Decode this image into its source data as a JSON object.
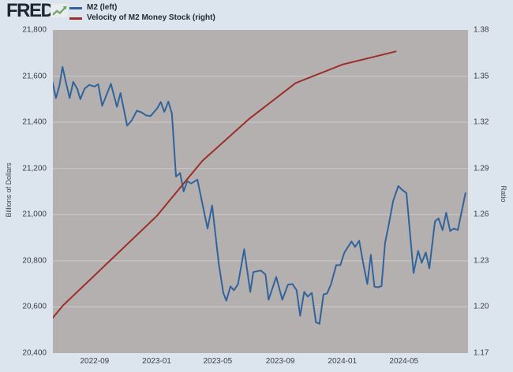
{
  "colors": {
    "page_bg": "#dce4ed",
    "plot_bg": "#b3b0af",
    "grid": "#c9c6c5",
    "m2_line": "#31639c",
    "velocity_line": "#9d2e29",
    "logo_text": "#1c2733",
    "legend_text": "#202b36",
    "tick_text": "#3a3f45",
    "axis_title_text": "#3d4854",
    "logo_icon_green": "#69a74f"
  },
  "header": {
    "logo_text": "FRED.",
    "logo_icon": "fred-sparkline-icon",
    "legend": [
      {
        "label": "M2 (left)",
        "color": "#31639c"
      },
      {
        "label": "Velocity of M2 Money Stock (right)",
        "color": "#9d2e29"
      }
    ]
  },
  "chart_data": {
    "type": "line",
    "title": "",
    "grid": "horizontal-only",
    "legend_position": "top-left",
    "plot_bg": "#b3b0af",
    "grid_color": "#c9c6c5",
    "x_axis": {
      "start": "2022-06-11",
      "end": "2024-09-04",
      "tick_dates": [
        "2022-09-01",
        "2023-01-01",
        "2023-05-01",
        "2023-09-01",
        "2024-01-01",
        "2024-05-01"
      ],
      "tick_labels": [
        "2022-09",
        "2023-01",
        "2023-05",
        "2023-09",
        "2024-01",
        "2024-05"
      ]
    },
    "left_axis": {
      "label": "Billions of Dollars",
      "min": 20400,
      "max": 21800,
      "ticks": [
        {
          "label": "21,800",
          "value": 21800
        },
        {
          "label": "21,600",
          "value": 21600
        },
        {
          "label": "21,400",
          "value": 21400
        },
        {
          "label": "21,200",
          "value": 21200
        },
        {
          "label": "21,000",
          "value": 21000
        },
        {
          "label": "20,800",
          "value": 20800
        },
        {
          "label": "20,600",
          "value": 20600
        },
        {
          "label": "20,400",
          "value": 20400
        }
      ]
    },
    "right_axis": {
      "label": "Ratio",
      "min": 1.17,
      "max": 1.38,
      "ticks": [
        {
          "label": "1.38",
          "value": 1.38
        },
        {
          "label": "1.35",
          "value": 1.35
        },
        {
          "label": "1.32",
          "value": 1.32
        },
        {
          "label": "1.29",
          "value": 1.29
        },
        {
          "label": "1.26",
          "value": 1.26
        },
        {
          "label": "1.23",
          "value": 1.23
        },
        {
          "label": "1.20",
          "value": 1.2
        },
        {
          "label": "1.17",
          "value": 1.17
        }
      ]
    },
    "series": [
      {
        "name": "M2 (left)",
        "axis": "left",
        "color": "#31639c",
        "unit": "Billions of Dollars",
        "frequency": "weekly (values estimated from pixels)",
        "points": [
          [
            "2022-06-10",
            21575
          ],
          [
            "2022-06-17",
            21505
          ],
          [
            "2022-06-24",
            21560
          ],
          [
            "2022-06-30",
            21640
          ],
          [
            "2022-07-08",
            21560
          ],
          [
            "2022-07-14",
            21505
          ],
          [
            "2022-07-21",
            21575
          ],
          [
            "2022-07-29",
            21545
          ],
          [
            "2022-08-04",
            21500
          ],
          [
            "2022-08-12",
            21545
          ],
          [
            "2022-08-21",
            21562
          ],
          [
            "2022-09-01",
            21555
          ],
          [
            "2022-09-08",
            21565
          ],
          [
            "2022-09-16",
            21471
          ],
          [
            "2022-10-03",
            21567
          ],
          [
            "2022-10-15",
            21467
          ],
          [
            "2022-10-22",
            21527
          ],
          [
            "2022-11-04",
            21385
          ],
          [
            "2022-11-13",
            21408
          ],
          [
            "2022-11-23",
            21450
          ],
          [
            "2022-12-02",
            21443
          ],
          [
            "2022-12-11",
            21430
          ],
          [
            "2022-12-20",
            21427
          ],
          [
            "2023-01-02",
            21460
          ],
          [
            "2023-01-09",
            21488
          ],
          [
            "2023-01-16",
            21445
          ],
          [
            "2023-01-24",
            21490
          ],
          [
            "2023-01-31",
            21438
          ],
          [
            "2023-02-08",
            21165
          ],
          [
            "2023-02-16",
            21180
          ],
          [
            "2023-02-23",
            21100
          ],
          [
            "2023-03-02",
            21145
          ],
          [
            "2023-03-10",
            21135
          ],
          [
            "2023-03-22",
            21152
          ],
          [
            "2023-04-03",
            21025
          ],
          [
            "2023-04-11",
            20940
          ],
          [
            "2023-04-20",
            21040
          ],
          [
            "2023-05-03",
            20790
          ],
          [
            "2023-05-12",
            20661
          ],
          [
            "2023-05-18",
            20627
          ],
          [
            "2023-05-26",
            20689
          ],
          [
            "2023-06-02",
            20672
          ],
          [
            "2023-06-10",
            20699
          ],
          [
            "2023-06-22",
            20850
          ],
          [
            "2023-07-04",
            20665
          ],
          [
            "2023-07-10",
            20751
          ],
          [
            "2023-07-25",
            20758
          ],
          [
            "2023-08-03",
            20740
          ],
          [
            "2023-08-09",
            20631
          ],
          [
            "2023-08-24",
            20730
          ],
          [
            "2023-09-05",
            20631
          ],
          [
            "2023-09-16",
            20696
          ],
          [
            "2023-09-25",
            20699
          ],
          [
            "2023-10-03",
            20672
          ],
          [
            "2023-10-10",
            20562
          ],
          [
            "2023-10-18",
            20665
          ],
          [
            "2023-10-25",
            20645
          ],
          [
            "2023-11-02",
            20661
          ],
          [
            "2023-11-10",
            20534
          ],
          [
            "2023-11-17",
            20527
          ],
          [
            "2023-11-25",
            20654
          ],
          [
            "2023-12-02",
            20658
          ],
          [
            "2023-12-10",
            20700
          ],
          [
            "2023-12-20",
            20781
          ],
          [
            "2023-12-28",
            20781
          ],
          [
            "2024-01-05",
            20836
          ],
          [
            "2024-01-19",
            20884
          ],
          [
            "2024-01-26",
            20860
          ],
          [
            "2024-02-03",
            20887
          ],
          [
            "2024-02-11",
            20790
          ],
          [
            "2024-02-19",
            20699
          ],
          [
            "2024-02-26",
            20826
          ],
          [
            "2024-03-04",
            20688
          ],
          [
            "2024-03-11",
            20685
          ],
          [
            "2024-03-18",
            20690
          ],
          [
            "2024-03-25",
            20877
          ],
          [
            "2024-04-01",
            20953
          ],
          [
            "2024-04-10",
            21060
          ],
          [
            "2024-04-20",
            21124
          ],
          [
            "2024-04-26",
            21110
          ],
          [
            "2024-05-06",
            21093
          ],
          [
            "2024-05-20",
            20747
          ],
          [
            "2024-05-29",
            20843
          ],
          [
            "2024-06-05",
            20791
          ],
          [
            "2024-06-13",
            20836
          ],
          [
            "2024-06-20",
            20767
          ],
          [
            "2024-07-01",
            20970
          ],
          [
            "2024-07-08",
            20984
          ],
          [
            "2024-07-16",
            20933
          ],
          [
            "2024-07-23",
            21008
          ],
          [
            "2024-07-31",
            20929
          ],
          [
            "2024-08-07",
            20940
          ],
          [
            "2024-08-15",
            20933
          ],
          [
            "2024-08-30",
            21093
          ]
        ]
      },
      {
        "name": "Velocity of M2 Money Stock (right)",
        "axis": "right",
        "color": "#9d2e29",
        "unit": "Ratio",
        "frequency": "quarterly (values estimated from pixels)",
        "points": [
          [
            "2022-06-11",
            1.193
          ],
          [
            "2022-07-01",
            1.201
          ],
          [
            "2022-10-01",
            1.23
          ],
          [
            "2023-01-01",
            1.259
          ],
          [
            "2023-04-01",
            1.295
          ],
          [
            "2023-07-01",
            1.322
          ],
          [
            "2023-10-01",
            1.3455
          ],
          [
            "2024-01-01",
            1.3575
          ],
          [
            "2024-04-15",
            1.366
          ]
        ]
      }
    ]
  }
}
